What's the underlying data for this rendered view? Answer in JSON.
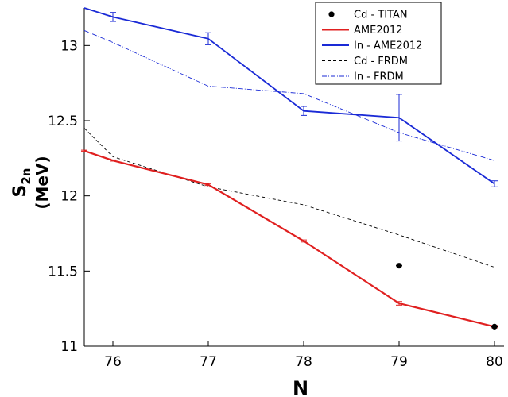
{
  "chart_data": {
    "type": "line",
    "xlabel": "N",
    "ylabel_main": "S",
    "ylabel_sub": "2n",
    "ylabel_unit": "(MeV)",
    "xlim": [
      75.7,
      80.1
    ],
    "ylim": [
      11.0,
      13.25
    ],
    "x_ticks": [
      76,
      77,
      78,
      79,
      80
    ],
    "y_ticks": [
      11,
      11.5,
      12,
      12.5,
      13
    ],
    "y_tick_labels": [
      "11",
      "11.5",
      "12",
      "12.5",
      "13"
    ],
    "grid": false,
    "legend_position": "top-right",
    "colors": {
      "cd_titan": "#000000",
      "ame_cd": "#e02020",
      "in_ame": "#1a2ad6",
      "cd_frdm": "#000000",
      "in_frdm": "#1a2ad6"
    },
    "series": [
      {
        "key": "cd_titan",
        "name": "Cd - TITAN",
        "style": "points",
        "points": [
          {
            "x": 79,
            "y": 11.535,
            "err": 0.012
          },
          {
            "x": 80,
            "y": 11.13,
            "err": 0.008
          }
        ]
      },
      {
        "key": "ame_cd",
        "name": "AME2012",
        "style": "line-error",
        "points": [
          {
            "x": 75.7,
            "y": 12.3,
            "err": 0.004
          },
          {
            "x": 76,
            "y": 12.235,
            "err": 0.004
          },
          {
            "x": 77,
            "y": 12.075,
            "err": 0.006
          },
          {
            "x": 78,
            "y": 11.7,
            "err": 0.007
          },
          {
            "x": 79,
            "y": 11.285,
            "err": 0.012
          },
          {
            "x": 80,
            "y": 11.13,
            "err": 0.008
          }
        ]
      },
      {
        "key": "in_ame",
        "name": "In - AME2012",
        "style": "line-error",
        "points": [
          {
            "x": 75.7,
            "y": 13.25,
            "err": 0
          },
          {
            "x": 76,
            "y": 13.19,
            "err": 0.03
          },
          {
            "x": 77,
            "y": 13.045,
            "err": 0.04
          },
          {
            "x": 78,
            "y": 12.565,
            "err": 0.03
          },
          {
            "x": 79,
            "y": 12.52,
            "err": 0.155
          },
          {
            "x": 80,
            "y": 12.08,
            "err": 0.02
          }
        ]
      },
      {
        "key": "cd_frdm",
        "name": "Cd - FRDM",
        "style": "dashed",
        "points": [
          {
            "x": 75.7,
            "y": 12.45
          },
          {
            "x": 76,
            "y": 12.26
          },
          {
            "x": 77,
            "y": 12.06
          },
          {
            "x": 78,
            "y": 11.94
          },
          {
            "x": 79,
            "y": 11.74
          },
          {
            "x": 80,
            "y": 11.525
          }
        ]
      },
      {
        "key": "in_frdm",
        "name": "In - FRDM",
        "style": "dashdot",
        "points": [
          {
            "x": 75.7,
            "y": 13.1
          },
          {
            "x": 76,
            "y": 13.02
          },
          {
            "x": 77,
            "y": 12.73
          },
          {
            "x": 78,
            "y": 12.68
          },
          {
            "x": 79,
            "y": 12.42
          },
          {
            "x": 80,
            "y": 12.235
          }
        ]
      }
    ]
  }
}
